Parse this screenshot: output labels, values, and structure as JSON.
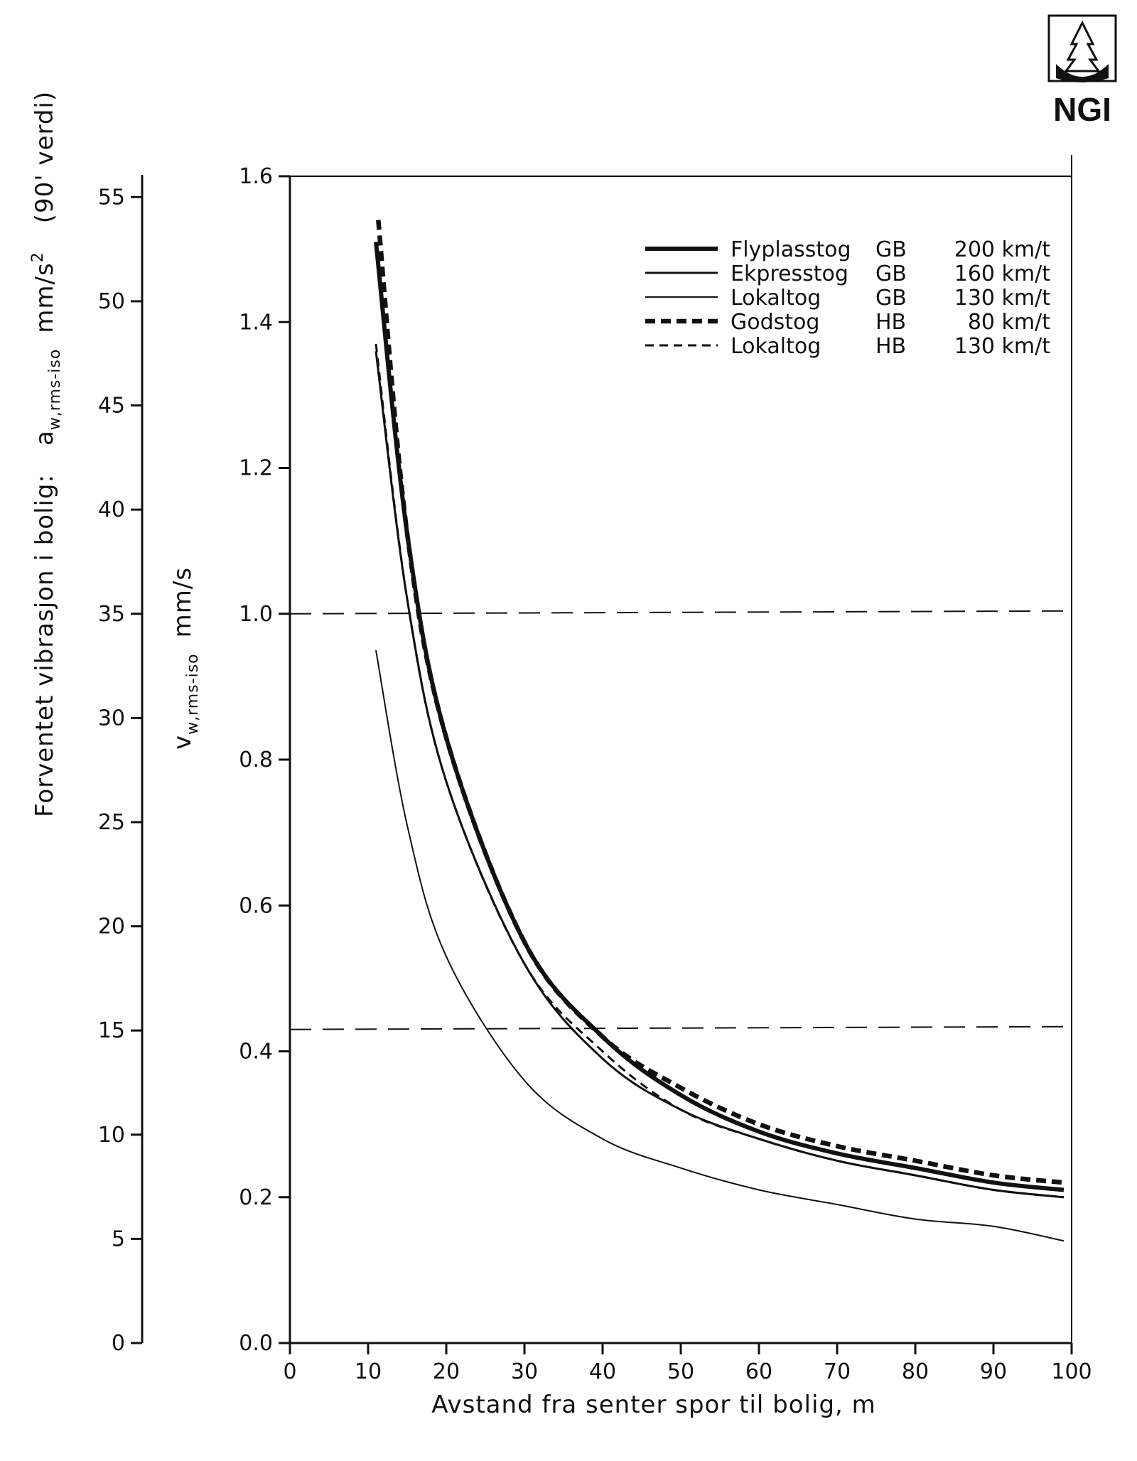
{
  "logo": {
    "text": "NGI"
  },
  "chart_data": {
    "type": "line",
    "title": "",
    "xlabel": "Avstand fra senter spor til bolig, m",
    "ylabel": "v_w,rms-iso mm/s",
    "ylabel_main": "v",
    "ylabel_sub": "w,rms-iso",
    "ylabel_unit": "mm/s",
    "xlim": [
      0,
      100
    ],
    "ylim": [
      0.0,
      1.6
    ],
    "xticks": [
      "0",
      "10",
      "20",
      "30",
      "40",
      "50",
      "60",
      "70",
      "80",
      "90",
      "100"
    ],
    "yticks": [
      "0.0",
      "0.2",
      "0.4",
      "0.6",
      "0.8",
      "1.0",
      "1.2",
      "1.4",
      "1.6"
    ],
    "secondary_axis": {
      "title": "Forventet vibrasjon i bolig:",
      "var_main": "a",
      "var_sub": "w,rms-iso",
      "unit_main": "mm/s",
      "unit_sup": "2",
      "note": "(90' verdi)",
      "ylim": [
        0,
        56
      ],
      "ticks": [
        "0",
        "5",
        "10",
        "15",
        "20",
        "25",
        "30",
        "35",
        "40",
        "45",
        "50",
        "55"
      ]
    },
    "reference_lines": [
      {
        "y": 1.0,
        "style": "dashed"
      },
      {
        "y": 0.43,
        "style": "dashed"
      }
    ],
    "series": [
      {
        "name": "Flyplasstog",
        "track": "GB",
        "speed": "200 km/t",
        "style": "thick-solid",
        "x": [
          11,
          15,
          20,
          30,
          40,
          50,
          60,
          70,
          80,
          90,
          99
        ],
        "values": [
          1.51,
          1.11,
          0.83,
          0.55,
          0.42,
          0.34,
          0.29,
          0.26,
          0.24,
          0.22,
          0.21
        ]
      },
      {
        "name": "Ekpresstog",
        "track": "GB",
        "speed": "160 km/t",
        "style": "solid",
        "x": [
          11,
          15,
          20,
          30,
          40,
          50,
          60,
          70,
          80,
          90,
          99
        ],
        "values": [
          1.36,
          1.02,
          0.77,
          0.52,
          0.39,
          0.32,
          0.28,
          0.25,
          0.23,
          0.21,
          0.2
        ]
      },
      {
        "name": "Lokaltog",
        "track": "GB",
        "speed": "130 km/t",
        "style": "thin-solid",
        "x": [
          11,
          15,
          20,
          30,
          40,
          50,
          60,
          70,
          80,
          90,
          99
        ],
        "values": [
          0.95,
          0.71,
          0.53,
          0.36,
          0.28,
          0.24,
          0.21,
          0.19,
          0.17,
          0.16,
          0.14
        ]
      },
      {
        "name": "Godstog",
        "track": "HB",
        "speed": "80 km/t",
        "style": "thick-dashed",
        "x": [
          11.3,
          15,
          20,
          30,
          40,
          50,
          60,
          70,
          80,
          90,
          99
        ],
        "values": [
          1.54,
          1.11,
          0.83,
          0.55,
          0.42,
          0.35,
          0.3,
          0.27,
          0.25,
          0.23,
          0.22
        ]
      },
      {
        "name": "Lokaltog",
        "track": "HB",
        "speed": "130 km/t",
        "style": "dashed",
        "x": [
          11,
          15,
          20,
          30,
          40,
          50,
          60,
          70,
          80,
          90,
          99
        ],
        "values": [
          1.37,
          1.02,
          0.77,
          0.52,
          0.4,
          0.32,
          0.28,
          0.25,
          0.23,
          0.21,
          0.2
        ]
      }
    ]
  }
}
